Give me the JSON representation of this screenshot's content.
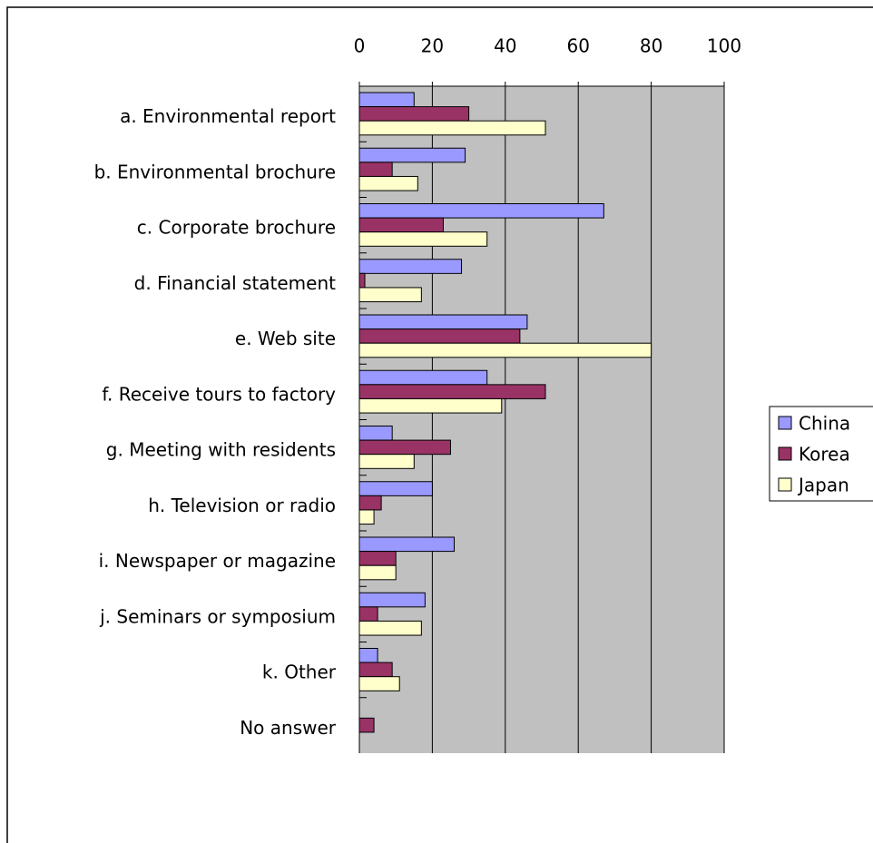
{
  "chart_data": {
    "type": "barh",
    "categories": [
      "a. Environmental report",
      "b. Environmental brochure",
      "c. Corporate brochure",
      "d. Financial statement",
      "e. Web site",
      "f. Receive tours to factory",
      "g. Meeting with residents",
      "h. Television or radio",
      "i. Newspaper or magazine",
      "j. Seminars or symposium",
      "k. Other",
      "No answer"
    ],
    "series": [
      {
        "name": "China",
        "color": "#9999ff",
        "values": [
          15,
          29,
          67,
          28,
          46,
          35,
          9,
          20,
          26,
          18,
          5,
          0
        ]
      },
      {
        "name": "Korea",
        "color": "#993366",
        "values": [
          30,
          9,
          23,
          1.5,
          44,
          51,
          25,
          6,
          10,
          5,
          9,
          4
        ]
      },
      {
        "name": "Japan",
        "color": "#ffffcc",
        "values": [
          51,
          16,
          35,
          17,
          80,
          39,
          15,
          4,
          10,
          17,
          11,
          0
        ]
      }
    ],
    "xlim": [
      0,
      100
    ],
    "xticks": [
      0,
      20,
      40,
      60,
      80,
      100
    ],
    "grid": true,
    "legend": "right"
  }
}
